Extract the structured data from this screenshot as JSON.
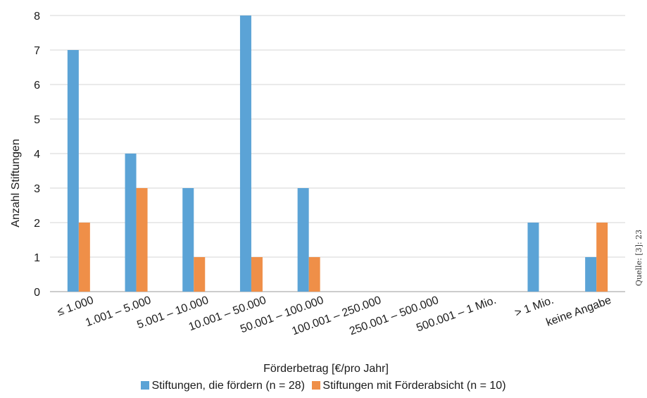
{
  "chart_data": {
    "type": "bar",
    "categories": [
      "≤ 1.000",
      "1.001 – 5.000",
      "5.001 – 10.000",
      "10.001 – 50.000",
      "50.001 – 100.000",
      "100.001 – 250.000",
      "250.001 – 500.000",
      "500.001 – 1 Mio.",
      "> 1 Mio.",
      "keine Angabe"
    ],
    "series": [
      {
        "name": "Stiftungen, die fördern (n = 28)",
        "color": "#5BA3D6",
        "values": [
          7,
          4,
          3,
          8,
          3,
          0,
          0,
          0,
          2,
          1
        ]
      },
      {
        "name": "Stiftungen mit Förderabsicht (n = 10)",
        "color": "#EF8F48",
        "values": [
          2,
          3,
          1,
          1,
          1,
          0,
          0,
          0,
          0,
          2
        ]
      }
    ],
    "xlabel": "Förderbetrag [€/pro Jahr]",
    "ylabel": "Anzahl Stiftungen",
    "ylim": [
      0,
      8
    ],
    "yticks": [
      0,
      1,
      2,
      3,
      4,
      5,
      6,
      7,
      8
    ],
    "grid": true,
    "legend_position": "bottom"
  },
  "source_note": "Quelle: [3]: 23"
}
